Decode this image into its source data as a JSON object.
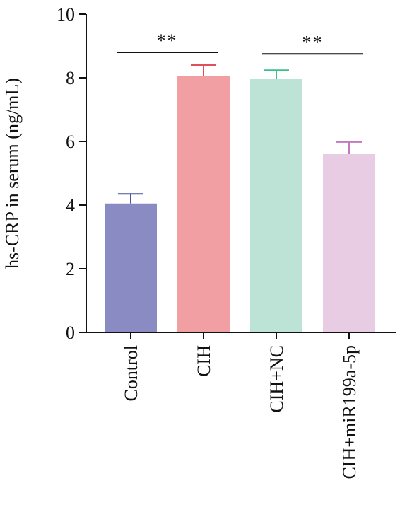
{
  "chart_data": {
    "type": "bar",
    "title": "",
    "xlabel": "",
    "ylabel": "hs-CRP in serum (ng/mL)",
    "ylim": [
      0,
      10
    ],
    "yticks": [
      0,
      2,
      4,
      6,
      8,
      10
    ],
    "grid": false,
    "legend": "none",
    "categories": [
      "Control",
      "CIH",
      "CIH+NC",
      "CIH+miR199a-5p"
    ],
    "values": [
      4.05,
      8.05,
      7.97,
      5.6
    ],
    "error_upper": [
      0.3,
      0.35,
      0.27,
      0.38
    ],
    "colors": [
      "#8B8BC4",
      "#F29FA3",
      "#BDE3D7",
      "#E8CCE4"
    ],
    "error_colors": [
      "#4A55A2",
      "#E0505A",
      "#3CC08A",
      "#C279BE"
    ],
    "significance": [
      {
        "from": 0,
        "to": 1,
        "label": "**",
        "y": 8.8
      },
      {
        "from": 2,
        "to": 3,
        "label": "**",
        "y": 8.75
      }
    ]
  }
}
